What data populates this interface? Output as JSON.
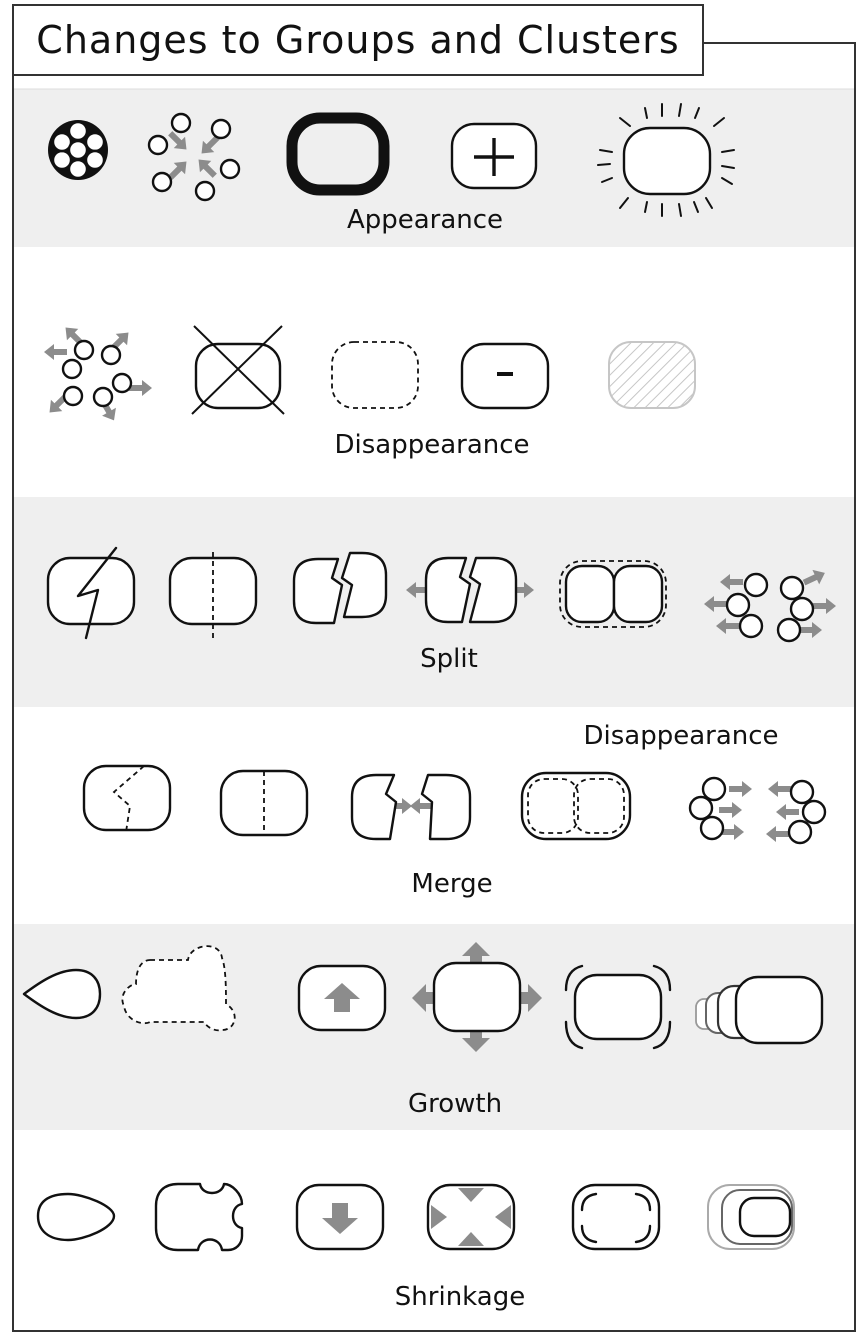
{
  "title": "Changes to Groups and Clusters",
  "sections": [
    {
      "label": "Appearance",
      "band": "#efefef"
    },
    {
      "label": "Disappearance",
      "band": "#ffffff"
    },
    {
      "label": "Split",
      "band": "#efefef"
    },
    {
      "label": "Merge",
      "band": "#ffffff",
      "extra_label": "Disappearance"
    },
    {
      "label": "Growth",
      "band": "#efefef"
    },
    {
      "label": "Shrinkage",
      "band": "#ffffff"
    }
  ],
  "icons": {
    "arrow_color": "#8c8c8c",
    "hatch_color": "#c6c6c6",
    "plus": "+",
    "minus": "-"
  }
}
